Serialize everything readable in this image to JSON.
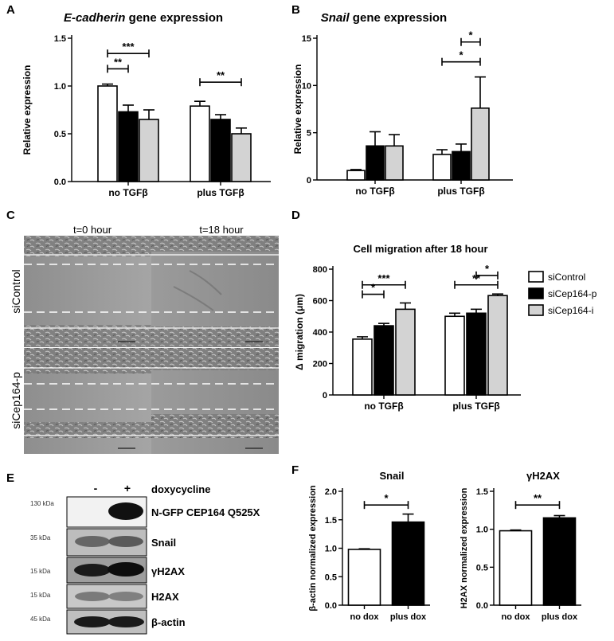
{
  "panels": {
    "A": "A",
    "B": "B",
    "C": "C",
    "D": "D",
    "E": "E",
    "F": "F"
  },
  "panel_c": {
    "col_labels": [
      "t=0 hour",
      "t=18 hour"
    ],
    "row_labels": [
      "siControl",
      "siCep164-p"
    ]
  },
  "legend_d": [
    "siControl",
    "siCep164-p",
    "siCep164-i"
  ],
  "panel_e": {
    "minus": "-",
    "plus": "+",
    "treatment": "doxycycline",
    "kda": [
      "130 kDa",
      "35 kDa",
      "15 kDa",
      "15 kDa",
      "45 kDa"
    ],
    "bands": [
      "N-GFP CEP164 Q525X",
      "Snail",
      "γH2AX",
      "H2AX",
      "β-actin"
    ]
  },
  "colors": {
    "siControl": "#ffffff",
    "siCep164-p": "#000000",
    "siCep164-i": "#d3d3d3"
  },
  "chart_data": [
    {
      "id": "A",
      "type": "bar",
      "title_italic": "E-cadherin",
      "title_rest": " gene expression",
      "ylabel": "Relative expression",
      "ylim": [
        0,
        1.5
      ],
      "yticks": [
        "0.0",
        "0.5",
        "1.0",
        "1.5"
      ],
      "categories": [
        "no TGFβ",
        "plus TGFβ"
      ],
      "series": [
        {
          "name": "siControl",
          "values": [
            1.0,
            0.79
          ],
          "errors": [
            0.02,
            0.05
          ]
        },
        {
          "name": "siCep164-p",
          "values": [
            0.73,
            0.65
          ],
          "errors": [
            0.07,
            0.05
          ]
        },
        {
          "name": "siCep164-i",
          "values": [
            0.65,
            0.5
          ],
          "errors": [
            0.1,
            0.06
          ]
        }
      ],
      "sig": [
        {
          "group": 0,
          "from": 0,
          "to": 1,
          "y": 1.18,
          "label": "**"
        },
        {
          "group": 0,
          "from": 0,
          "to": 2,
          "y": 1.34,
          "label": "***"
        },
        {
          "group": 1,
          "from": 0,
          "to": 2,
          "y": 1.04,
          "label": "**"
        }
      ]
    },
    {
      "id": "B",
      "type": "bar",
      "title_italic": "Snail",
      "title_rest": " gene expression",
      "ylabel": "Relative expression",
      "ylim": [
        0,
        15
      ],
      "yticks": [
        "0",
        "5",
        "10",
        "15"
      ],
      "categories": [
        "no TGFβ",
        "plus TGFβ"
      ],
      "series": [
        {
          "name": "siControl",
          "values": [
            1.0,
            2.7
          ],
          "errors": [
            0.1,
            0.5
          ]
        },
        {
          "name": "siCep164-p",
          "values": [
            3.6,
            3.0
          ],
          "errors": [
            1.5,
            0.8
          ]
        },
        {
          "name": "siCep164-i",
          "values": [
            3.6,
            7.6
          ],
          "errors": [
            1.2,
            3.3
          ]
        }
      ],
      "sig": [
        {
          "group": 1,
          "from": 1,
          "to": 2,
          "y": 14.6,
          "label": "*"
        },
        {
          "group": 1,
          "from": 0,
          "to": 2,
          "y": 12.5,
          "label": "*"
        }
      ]
    },
    {
      "id": "D",
      "type": "bar",
      "title": "Cell migration after 18 hour",
      "ylabel": "Δ migration (μm)",
      "ylim": [
        0,
        800
      ],
      "yticks": [
        "0",
        "200",
        "400",
        "600",
        "800"
      ],
      "categories": [
        "no TGFβ",
        "plus TGFβ"
      ],
      "series": [
        {
          "name": "siControl",
          "values": [
            355,
            500
          ],
          "errors": [
            15,
            20
          ]
        },
        {
          "name": "siCep164-p",
          "values": [
            440,
            520
          ],
          "errors": [
            15,
            25
          ]
        },
        {
          "name": "siCep164-i",
          "values": [
            545,
            632
          ],
          "errors": [
            40,
            10
          ]
        }
      ],
      "sig": [
        {
          "group": 0,
          "from": 0,
          "to": 1,
          "y": 640,
          "label": "*"
        },
        {
          "group": 0,
          "from": 0,
          "to": 2,
          "y": 700,
          "label": "***"
        },
        {
          "group": 1,
          "from": 1,
          "to": 2,
          "y": 760,
          "label": "*"
        },
        {
          "group": 1,
          "from": 0,
          "to": 2,
          "y": 700,
          "label": "**"
        }
      ]
    },
    {
      "id": "F1",
      "type": "bar",
      "title": "Snail",
      "ylabel": "β-actin normalized expression",
      "ylim": [
        0,
        2.0
      ],
      "yticks": [
        "0.0",
        "0.5",
        "1.0",
        "1.5",
        "2.0"
      ],
      "categories": [
        "no dox",
        "plus dox"
      ],
      "values": [
        0.98,
        1.46
      ],
      "errors": [
        0.01,
        0.14
      ],
      "fills": [
        "#ffffff",
        "#000000"
      ],
      "sig": [
        {
          "from": 0,
          "to": 1,
          "y": 1.76,
          "label": "*"
        }
      ]
    },
    {
      "id": "F2",
      "type": "bar",
      "title": "γH2AX",
      "ylabel": "H2AX normalized expression",
      "ylim": [
        0,
        1.5
      ],
      "yticks": [
        "0.0",
        "0.5",
        "1.0",
        "1.5"
      ],
      "categories": [
        "no dox",
        "plus dox"
      ],
      "values": [
        0.98,
        1.15
      ],
      "errors": [
        0.01,
        0.03
      ],
      "fills": [
        "#ffffff",
        "#000000"
      ],
      "sig": [
        {
          "from": 0,
          "to": 1,
          "y": 1.32,
          "label": "**"
        }
      ]
    }
  ]
}
